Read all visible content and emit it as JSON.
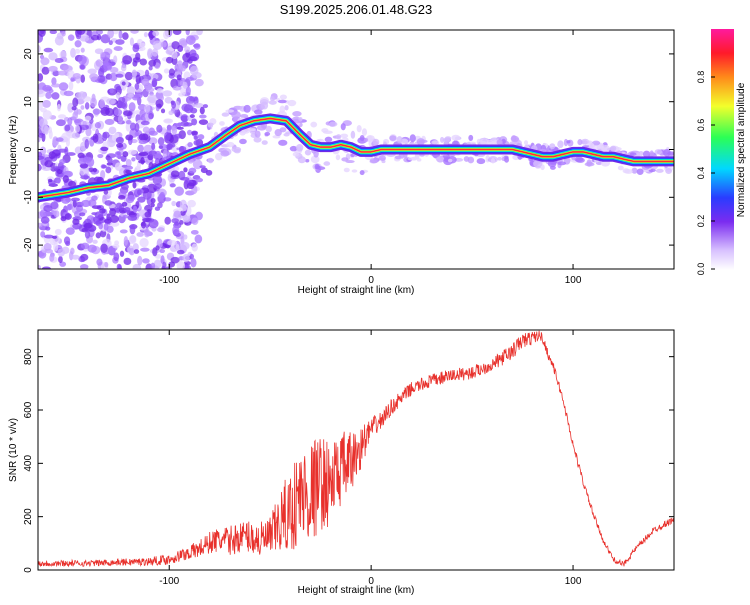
{
  "title": "S199.2025.206.01.48.G23",
  "colors": {
    "snr_line": "#e8312c",
    "ridge": "#ff2b3a",
    "scatter": "#7b2cf0",
    "frame": "#000000"
  },
  "chart_data": [
    {
      "type": "heatmap",
      "title": "S199.2025.206.01.48.G23",
      "xlabel": "Height of straight line (km)",
      "ylabel": "Frequency (Hz)",
      "xlim": [
        -165,
        150
      ],
      "ylim": [
        -25,
        25
      ],
      "x_ticks": [
        -100,
        0,
        100
      ],
      "y_ticks": [
        -20,
        -10,
        0,
        10,
        20
      ],
      "x_tick_labels": [
        "-100",
        "0",
        "100"
      ],
      "y_tick_labels": [
        "-20",
        "-10",
        "0",
        "10",
        "20"
      ],
      "colorbar": {
        "label": "Normalized spectral amplitude",
        "range": [
          0,
          1
        ],
        "ticks": [
          0.0,
          0.2,
          0.4,
          0.6,
          0.8
        ],
        "tick_labels": [
          "0.0",
          "0.2",
          "0.4",
          "0.6",
          "0.8"
        ],
        "colormap": "rainbow (white-violet-blue-cyan-green-yellow-orange-red-magenta)"
      },
      "ridge": {
        "x": [
          -165,
          -150,
          -140,
          -130,
          -120,
          -110,
          -100,
          -90,
          -80,
          -72,
          -65,
          -58,
          -50,
          -42,
          -35,
          -30,
          -25,
          -20,
          -15,
          -10,
          -5,
          0,
          5,
          10,
          20,
          30,
          40,
          50,
          60,
          70,
          75,
          80,
          85,
          90,
          95,
          100,
          105,
          110,
          115,
          120,
          125,
          130,
          140,
          150
        ],
        "y": [
          -10,
          -9,
          -8,
          -7.5,
          -6,
          -5,
          -3,
          -1,
          0.5,
          3,
          5,
          6,
          6.5,
          6,
          3,
          1,
          0.5,
          0.5,
          1,
          0.5,
          -0.5,
          -0.5,
          0,
          0,
          0,
          0,
          0,
          0,
          0,
          0,
          -0.5,
          -1,
          -1.5,
          -1.5,
          -1,
          -0.5,
          -0.5,
          -1,
          -1.5,
          -1.5,
          -2,
          -2.5,
          -2.5,
          -2.5
        ]
      }
    },
    {
      "type": "line",
      "xlabel": "Height of straight line (km)",
      "ylabel": "SNR (10 * v/v)",
      "xlim": [
        -165,
        150
      ],
      "ylim": [
        0,
        900
      ],
      "x_ticks": [
        -100,
        0,
        100
      ],
      "y_ticks": [
        0,
        200,
        400,
        600,
        800
      ],
      "x_tick_labels": [
        "-100",
        "0",
        "100"
      ],
      "y_tick_labels": [
        "0",
        "200",
        "400",
        "600",
        "800"
      ],
      "x": [
        -165,
        -150,
        -140,
        -130,
        -120,
        -110,
        -100,
        -92,
        -85,
        -78,
        -70,
        -62,
        -55,
        -50,
        -45,
        -40,
        -35,
        -30,
        -25,
        -20,
        -15,
        -10,
        -5,
        0,
        5,
        10,
        20,
        30,
        40,
        50,
        60,
        70,
        75,
        80,
        83,
        85,
        88,
        90,
        95,
        100,
        105,
        110,
        115,
        120,
        125,
        130,
        140,
        150
      ],
      "y": [
        25,
        25,
        25,
        28,
        30,
        32,
        40,
        60,
        80,
        110,
        110,
        130,
        110,
        120,
        180,
        220,
        280,
        290,
        330,
        320,
        380,
        400,
        460,
        530,
        560,
        610,
        680,
        710,
        730,
        740,
        770,
        820,
        860,
        870,
        880,
        870,
        800,
        770,
        640,
        470,
        330,
        210,
        110,
        40,
        20,
        70,
        150,
        190
      ],
      "noise": [
        12,
        12,
        12,
        12,
        14,
        15,
        20,
        25,
        35,
        45,
        55,
        60,
        70,
        80,
        120,
        160,
        190,
        200,
        180,
        160,
        140,
        120,
        80,
        40,
        35,
        30,
        25,
        25,
        25,
        25,
        25,
        30,
        30,
        25,
        20,
        20,
        15,
        15,
        15,
        15,
        15,
        12,
        10,
        10,
        10,
        12,
        12,
        12
      ]
    }
  ]
}
